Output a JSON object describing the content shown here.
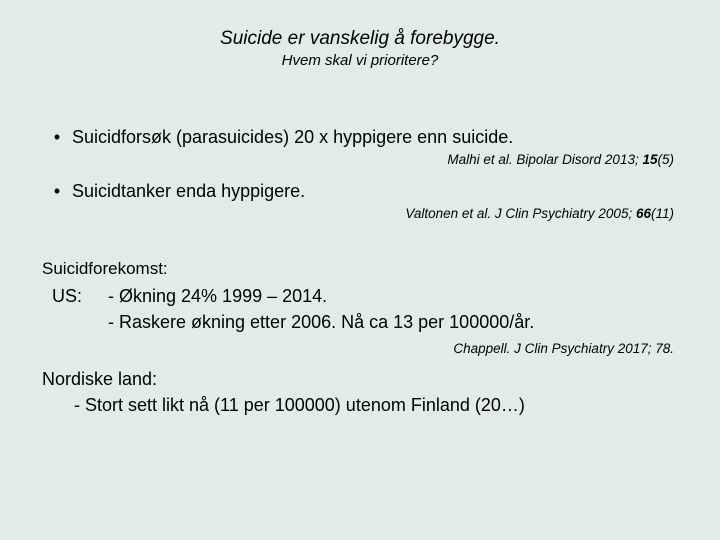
{
  "background_color": "#e0ece8",
  "text_color": "#000000",
  "header": {
    "title": "Suicide er vanskelig å forebygge.",
    "subtitle": "Hvem skal vi prioritere?"
  },
  "bullets": [
    {
      "text": "Suicidforsøk (parasuicides) 20 x hyppigere enn suicide.",
      "citation_prefix": "Malhi et al. Bipolar Disord 2013; ",
      "citation_bold": "15",
      "citation_suffix": "(5)"
    },
    {
      "text": "Suicidtanker enda hyppigere.",
      "citation_prefix": "Valtonen et al. J Clin Psychiatry 2005; ",
      "citation_bold": "66",
      "citation_suffix": "(11)"
    }
  ],
  "section": {
    "label": "Suicidforekomst:",
    "us_label": "US:",
    "us_line1": "-  Økning 24% 1999 – 2014.",
    "us_line2": "-  Raskere økning etter 2006. Nå ca 13 per 100000/år.",
    "us_citation": "Chappell. J Clin Psychiatry 2017; 78.",
    "nordic_label": "Nordiske land:",
    "nordic_line": "-  Stort sett likt nå (11 per 100000) utenom Finland (20…)"
  }
}
